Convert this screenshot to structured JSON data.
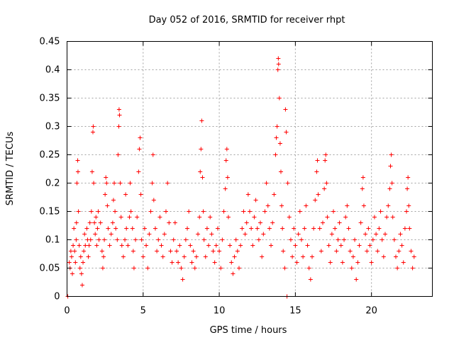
{
  "chart_data": {
    "type": "scatter",
    "title": "Day 052 of 2016, SRMTID for receiver rhpt",
    "xlabel": "GPS time / hours",
    "ylabel": "SRMTID / TECUs",
    "xlim": [
      0,
      24
    ],
    "ylim": [
      0,
      0.45
    ],
    "xticks": [
      0,
      5,
      10,
      15,
      20
    ],
    "yticks": [
      0,
      0.05,
      0.1,
      0.15,
      0.2,
      0.25,
      0.3,
      0.35,
      0.4,
      0.45
    ],
    "xtick_labels": [
      "0",
      "5",
      "10",
      "15",
      "20"
    ],
    "ytick_labels": [
      "0",
      "0.05",
      "0.1",
      "0.15",
      "0.2",
      "0.25",
      "0.3",
      "0.35",
      "0.4",
      "0.45"
    ],
    "grid": true,
    "marker": "+",
    "color": "#ff0000",
    "series": [
      {
        "name": "SRMTID",
        "points": [
          [
            0.05,
            0.0
          ],
          [
            0.15,
            0.06
          ],
          [
            0.2,
            0.05
          ],
          [
            0.25,
            0.08
          ],
          [
            0.3,
            0.07
          ],
          [
            0.35,
            0.04
          ],
          [
            0.4,
            0.09
          ],
          [
            0.45,
            0.12
          ],
          [
            0.5,
            0.08
          ],
          [
            0.55,
            0.06
          ],
          [
            0.6,
            0.1
          ],
          [
            0.62,
            0.13
          ],
          [
            0.65,
            0.2
          ],
          [
            0.7,
            0.24
          ],
          [
            0.72,
            0.22
          ],
          [
            0.75,
            0.15
          ],
          [
            0.8,
            0.09
          ],
          [
            0.85,
            0.05
          ],
          [
            0.9,
            0.07
          ],
          [
            0.95,
            0.04
          ],
          [
            1.0,
            0.02
          ],
          [
            1.05,
            0.06
          ],
          [
            1.1,
            0.08
          ],
          [
            1.15,
            0.11
          ],
          [
            1.2,
            0.09
          ],
          [
            1.3,
            0.12
          ],
          [
            1.35,
            0.1
          ],
          [
            1.4,
            0.07
          ],
          [
            1.45,
            0.09
          ],
          [
            1.5,
            0.13
          ],
          [
            1.55,
            0.1
          ],
          [
            1.6,
            0.15
          ],
          [
            1.65,
            0.22
          ],
          [
            1.7,
            0.29
          ],
          [
            1.72,
            0.3
          ],
          [
            1.75,
            0.2
          ],
          [
            1.8,
            0.13
          ],
          [
            1.85,
            0.11
          ],
          [
            1.9,
            0.14
          ],
          [
            1.95,
            0.09
          ],
          [
            2.0,
            0.12
          ],
          [
            2.05,
            0.15
          ],
          [
            2.1,
            0.1
          ],
          [
            2.2,
            0.13
          ],
          [
            2.3,
            0.08
          ],
          [
            2.35,
            0.05
          ],
          [
            2.4,
            0.07
          ],
          [
            2.45,
            0.1
          ],
          [
            2.5,
            0.18
          ],
          [
            2.55,
            0.21
          ],
          [
            2.6,
            0.2
          ],
          [
            2.65,
            0.16
          ],
          [
            2.7,
            0.12
          ],
          [
            2.8,
            0.09
          ],
          [
            2.9,
            0.11
          ],
          [
            3.0,
            0.13
          ],
          [
            3.05,
            0.17
          ],
          [
            3.1,
            0.2
          ],
          [
            3.15,
            0.15
          ],
          [
            3.2,
            0.12
          ],
          [
            3.3,
            0.1
          ],
          [
            3.35,
            0.25
          ],
          [
            3.4,
            0.3
          ],
          [
            3.42,
            0.33
          ],
          [
            3.45,
            0.32
          ],
          [
            3.5,
            0.2
          ],
          [
            3.55,
            0.14
          ],
          [
            3.6,
            0.09
          ],
          [
            3.7,
            0.07
          ],
          [
            3.8,
            0.1
          ],
          [
            3.85,
            0.18
          ],
          [
            3.9,
            0.12
          ],
          [
            4.0,
            0.09
          ],
          [
            4.1,
            0.14
          ],
          [
            4.15,
            0.2
          ],
          [
            4.2,
            0.15
          ],
          [
            4.3,
            0.12
          ],
          [
            4.35,
            0.08
          ],
          [
            4.4,
            0.05
          ],
          [
            4.5,
            0.1
          ],
          [
            4.6,
            0.14
          ],
          [
            4.7,
            0.22
          ],
          [
            4.75,
            0.26
          ],
          [
            4.8,
            0.28
          ],
          [
            4.85,
            0.18
          ],
          [
            4.9,
            0.1
          ],
          [
            5.0,
            0.07
          ],
          [
            5.1,
            0.12
          ],
          [
            5.2,
            0.09
          ],
          [
            5.3,
            0.05
          ],
          [
            5.4,
            0.11
          ],
          [
            5.5,
            0.15
          ],
          [
            5.6,
            0.2
          ],
          [
            5.65,
            0.25
          ],
          [
            5.7,
            0.17
          ],
          [
            5.8,
            0.12
          ],
          [
            5.9,
            0.08
          ],
          [
            6.0,
            0.1
          ],
          [
            6.1,
            0.14
          ],
          [
            6.2,
            0.09
          ],
          [
            6.3,
            0.07
          ],
          [
            6.4,
            0.11
          ],
          [
            6.5,
            0.15
          ],
          [
            6.6,
            0.2
          ],
          [
            6.7,
            0.13
          ],
          [
            6.8,
            0.08
          ],
          [
            6.9,
            0.06
          ],
          [
            7.0,
            0.1
          ],
          [
            7.1,
            0.13
          ],
          [
            7.2,
            0.08
          ],
          [
            7.3,
            0.06
          ],
          [
            7.4,
            0.09
          ],
          [
            7.5,
            0.05
          ],
          [
            7.6,
            0.03
          ],
          [
            7.7,
            0.07
          ],
          [
            7.8,
            0.1
          ],
          [
            7.9,
            0.12
          ],
          [
            8.0,
            0.15
          ],
          [
            8.1,
            0.09
          ],
          [
            8.2,
            0.06
          ],
          [
            8.3,
            0.08
          ],
          [
            8.4,
            0.05
          ],
          [
            8.5,
            0.07
          ],
          [
            8.6,
            0.11
          ],
          [
            8.7,
            0.14
          ],
          [
            8.75,
            0.22
          ],
          [
            8.8,
            0.26
          ],
          [
            8.85,
            0.31
          ],
          [
            8.9,
            0.21
          ],
          [
            8.95,
            0.15
          ],
          [
            9.0,
            0.1
          ],
          [
            9.1,
            0.07
          ],
          [
            9.2,
            0.12
          ],
          [
            9.3,
            0.09
          ],
          [
            9.4,
            0.14
          ],
          [
            9.5,
            0.11
          ],
          [
            9.6,
            0.08
          ],
          [
            9.7,
            0.06
          ],
          [
            9.8,
            0.09
          ],
          [
            9.9,
            0.12
          ],
          [
            10.0,
            0.08
          ],
          [
            10.1,
            0.05
          ],
          [
            10.2,
            0.1
          ],
          [
            10.3,
            0.15
          ],
          [
            10.4,
            0.19
          ],
          [
            10.45,
            0.24
          ],
          [
            10.5,
            0.26
          ],
          [
            10.55,
            0.21
          ],
          [
            10.6,
            0.14
          ],
          [
            10.7,
            0.09
          ],
          [
            10.8,
            0.06
          ],
          [
            10.9,
            0.04
          ],
          [
            11.0,
            0.07
          ],
          [
            11.1,
            0.1
          ],
          [
            11.2,
            0.08
          ],
          [
            11.3,
            0.05
          ],
          [
            11.4,
            0.09
          ],
          [
            11.5,
            0.12
          ],
          [
            11.6,
            0.15
          ],
          [
            11.7,
            0.11
          ],
          [
            11.8,
            0.13
          ],
          [
            11.9,
            0.18
          ],
          [
            12.0,
            0.15
          ],
          [
            12.1,
            0.12
          ],
          [
            12.2,
            0.09
          ],
          [
            12.3,
            0.14
          ],
          [
            12.4,
            0.17
          ],
          [
            12.5,
            0.12
          ],
          [
            12.6,
            0.1
          ],
          [
            12.7,
            0.13
          ],
          [
            12.8,
            0.07
          ],
          [
            12.9,
            0.11
          ],
          [
            13.0,
            0.15
          ],
          [
            13.1,
            0.2
          ],
          [
            13.2,
            0.16
          ],
          [
            13.3,
            0.12
          ],
          [
            13.4,
            0.09
          ],
          [
            13.5,
            0.13
          ],
          [
            13.6,
            0.18
          ],
          [
            13.7,
            0.25
          ],
          [
            13.75,
            0.28
          ],
          [
            13.8,
            0.3
          ],
          [
            13.85,
            0.4
          ],
          [
            13.88,
            0.42
          ],
          [
            13.9,
            0.41
          ],
          [
            13.95,
            0.35
          ],
          [
            14.0,
            0.27
          ],
          [
            14.05,
            0.22
          ],
          [
            14.1,
            0.16
          ],
          [
            14.15,
            0.12
          ],
          [
            14.2,
            0.08
          ],
          [
            14.3,
            0.05
          ],
          [
            14.35,
            0.33
          ],
          [
            14.4,
            0.29
          ],
          [
            14.45,
            0.0
          ],
          [
            14.5,
            0.2
          ],
          [
            14.6,
            0.14
          ],
          [
            14.7,
            0.1
          ],
          [
            14.8,
            0.07
          ],
          [
            14.9,
            0.12
          ],
          [
            15.0,
            0.09
          ],
          [
            15.1,
            0.06
          ],
          [
            15.2,
            0.11
          ],
          [
            15.3,
            0.15
          ],
          [
            15.4,
            0.1
          ],
          [
            15.5,
            0.07
          ],
          [
            15.6,
            0.12
          ],
          [
            15.7,
            0.16
          ],
          [
            15.8,
            0.09
          ],
          [
            15.9,
            0.05
          ],
          [
            16.0,
            0.03
          ],
          [
            16.1,
            0.07
          ],
          [
            16.2,
            0.12
          ],
          [
            16.3,
            0.17
          ],
          [
            16.4,
            0.22
          ],
          [
            16.45,
            0.24
          ],
          [
            16.5,
            0.18
          ],
          [
            16.6,
            0.12
          ],
          [
            16.7,
            0.08
          ],
          [
            16.8,
            0.13
          ],
          [
            16.9,
            0.19
          ],
          [
            16.95,
            0.24
          ],
          [
            17.0,
            0.25
          ],
          [
            17.05,
            0.2
          ],
          [
            17.1,
            0.14
          ],
          [
            17.2,
            0.09
          ],
          [
            17.3,
            0.06
          ],
          [
            17.4,
            0.11
          ],
          [
            17.5,
            0.15
          ],
          [
            17.6,
            0.12
          ],
          [
            17.7,
            0.08
          ],
          [
            17.8,
            0.1
          ],
          [
            17.9,
            0.13
          ],
          [
            18.0,
            0.09
          ],
          [
            18.1,
            0.06
          ],
          [
            18.2,
            0.1
          ],
          [
            18.3,
            0.14
          ],
          [
            18.4,
            0.16
          ],
          [
            18.5,
            0.12
          ],
          [
            18.6,
            0.08
          ],
          [
            18.7,
            0.05
          ],
          [
            18.8,
            0.07
          ],
          [
            18.9,
            0.1
          ],
          [
            19.0,
            0.03
          ],
          [
            19.1,
            0.06
          ],
          [
            19.2,
            0.09
          ],
          [
            19.3,
            0.13
          ],
          [
            19.4,
            0.19
          ],
          [
            19.45,
            0.21
          ],
          [
            19.5,
            0.16
          ],
          [
            19.6,
            0.11
          ],
          [
            19.7,
            0.08
          ],
          [
            19.8,
            0.12
          ],
          [
            19.9,
            0.09
          ],
          [
            20.0,
            0.06
          ],
          [
            20.1,
            0.1
          ],
          [
            20.2,
            0.14
          ],
          [
            20.3,
            0.11
          ],
          [
            20.4,
            0.08
          ],
          [
            20.5,
            0.12
          ],
          [
            20.6,
            0.15
          ],
          [
            20.7,
            0.1
          ],
          [
            20.8,
            0.07
          ],
          [
            20.9,
            0.11
          ],
          [
            21.0,
            0.14
          ],
          [
            21.1,
            0.16
          ],
          [
            21.2,
            0.19
          ],
          [
            21.25,
            0.23
          ],
          [
            21.3,
            0.25
          ],
          [
            21.35,
            0.2
          ],
          [
            21.4,
            0.14
          ],
          [
            21.5,
            0.1
          ],
          [
            21.6,
            0.07
          ],
          [
            21.7,
            0.05
          ],
          [
            21.8,
            0.08
          ],
          [
            21.9,
            0.11
          ],
          [
            22.0,
            0.09
          ],
          [
            22.1,
            0.06
          ],
          [
            22.2,
            0.12
          ],
          [
            22.3,
            0.15
          ],
          [
            22.35,
            0.19
          ],
          [
            22.4,
            0.21
          ],
          [
            22.45,
            0.16
          ],
          [
            22.5,
            0.12
          ],
          [
            22.6,
            0.08
          ],
          [
            22.7,
            0.05
          ],
          [
            22.8,
            0.07
          ]
        ]
      }
    ]
  }
}
